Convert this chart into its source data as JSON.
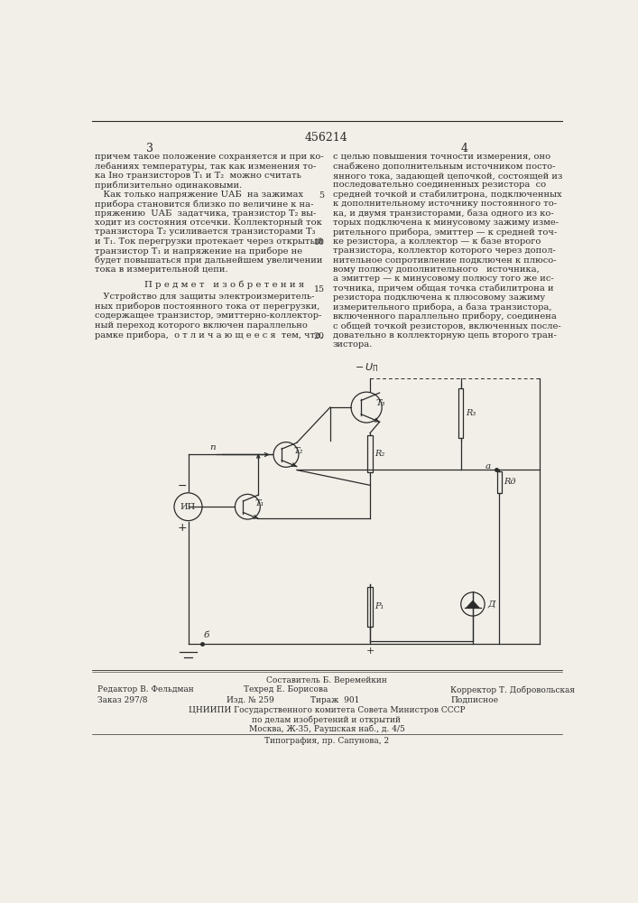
{
  "page_number_center": "456214",
  "col_left_num": "3",
  "col_right_num": "4",
  "col_left_text": [
    "причем такое положение сохраняется и при ко-",
    "лебаниях температуры, так как изменения то-",
    "ка Iно транзисторов T₁ и T₂  можно считать",
    "приблизительно одинаковыми.",
    "   Как только напряжение UАБ  на зажимах",
    "прибора становится близко по величине к на-",
    "пряжению  UАБ  задатчика, транзистор T₂ вы-",
    "ходит из состояния отсечки. Коллекторный ток",
    "транзистора T₂ усиливается транзисторами T₃",
    "и T₁. Ток перегрузки протекает через открытый",
    "транзистор T₁ и напряжение на приборе не",
    "будет повышаться при дальнейшем увеличении",
    "тока в измерительной цепи."
  ],
  "predmet_title": "П р е д м е т   и з о б р е т е н и я",
  "predmet_text": [
    "   Устройство для защиты электроизмеритель-",
    "ных приборов постоянного тока от перегрузки,",
    "содержащее транзистор, эмиттерно-коллектор-",
    "ный переход которого включен параллельно",
    "рамке прибора,  о т л и ч а ю щ е е с я  тем, что,"
  ],
  "col_right_text": [
    "с целью повышения точности измерения, оно",
    "снабжено дополнительным источником посто-",
    "янного тока, задающей цепочкой, состоящей из",
    "последовательно соединенных резистора  со",
    "средней точкой и стабилитрона, подключенных",
    "к дополнительному источнику постоянного то-",
    "ка, и двумя транзисторами, база одного из ко-",
    "торых подключена к минусовому зажиму изме-",
    "рительного прибора, эмиттер — к средней точ-",
    "ке резистора, а коллектор — к базе второго",
    "транзистора, коллектор которого через допол-",
    "нительное сопротивление подключен к плюсо-",
    "вому полюсу дополнительного   источника,",
    "а эмиттер — к минусовому полюсу того же ис-",
    "точника, причем общая точка стабилитрона и",
    "резистора подключена к плюсовому зажиму",
    "измерительного прибора, а база транзистора,",
    "включенного параллельно прибору, соединена",
    "с общей точкой резисторов, включенных после-",
    "довательно в коллекторную цепь второго тран-",
    "зистора."
  ],
  "footer_line1": "Составитель Б. Веремейкин",
  "footer_editor": "Редактор В. Фельдман",
  "footer_tech": "Техред Е. Борисова",
  "footer_corrector": "Корректор Т. Добровольская",
  "footer_order": "Заказ 297/8",
  "footer_izd": "Изд. № 259",
  "footer_tirazh": "Тираж  901",
  "footer_podp": "Подписное",
  "footer_org": "ЦНИИПИ Государственного комитета Совета Министров СССР",
  "footer_org2": "по делам изобретений и открытий",
  "footer_addr": "Москва, Ж-35, Раушская наб., д. 4/5",
  "footer_typo": "Типография, пр. Сапунова, 2",
  "bg_color": "#f2efe8",
  "text_color": "#2a2a2a"
}
